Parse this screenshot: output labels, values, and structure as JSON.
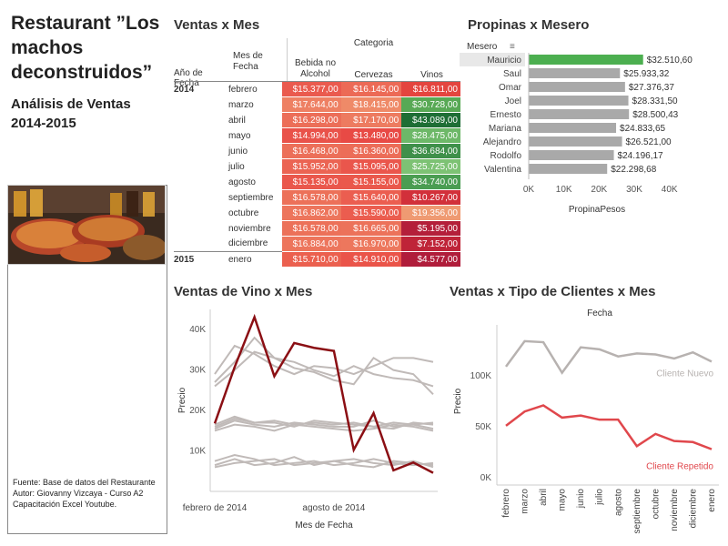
{
  "dashboard": {
    "title": "Restaurant ”Los machos deconstruidos”",
    "subtitle": "Análisis de Ventas 2014-2015",
    "source_lines": [
      "Fuente: Base de datos del Restaurante",
      "Autor: Giovanny Vizcaya - Curso A2",
      "Capacitación Excel Youtube."
    ]
  },
  "chart_data": [
    {
      "id": "ventas_x_mes",
      "type": "table",
      "title": "Ventas x Mes",
      "header_group": "Categoria",
      "row_headers": [
        "Año de Fecha",
        "Mes de Fecha"
      ],
      "columns": [
        "Bebida no Alcohol",
        "Cervezas",
        "Vinos"
      ],
      "rows": [
        {
          "year": "2014",
          "month": "febrero",
          "values": [
            "$15.377,00",
            "$16.145,00",
            "$16.811,00"
          ],
          "colors": [
            "#ea5a4e",
            "#ec6a56",
            "#e4453f"
          ]
        },
        {
          "year": "",
          "month": "marzo",
          "values": [
            "$17.644,00",
            "$18.415,00",
            "$30.728,00"
          ],
          "colors": [
            "#ee8063",
            "#ef8a68",
            "#58a955"
          ]
        },
        {
          "year": "",
          "month": "abril",
          "values": [
            "$16.298,00",
            "$17.170,00",
            "$43.089,00"
          ],
          "colors": [
            "#ec6e58",
            "#ed7b60",
            "#1e6e35"
          ]
        },
        {
          "year": "",
          "month": "mayo",
          "values": [
            "$14.994,00",
            "$13.480,00",
            "$28.475,00"
          ],
          "colors": [
            "#e9524a",
            "#e84a45",
            "#6db868"
          ]
        },
        {
          "year": "",
          "month": "junio",
          "values": [
            "$16.468,00",
            "$16.360,00",
            "$36.684,00"
          ],
          "colors": [
            "#ec6f59",
            "#ec6d58",
            "#3f904a"
          ]
        },
        {
          "year": "",
          "month": "julio",
          "values": [
            "$15.952,00",
            "$15.095,00",
            "$25.725,00"
          ],
          "colors": [
            "#eb6453",
            "#ea564c",
            "#7dc274"
          ]
        },
        {
          "year": "",
          "month": "agosto",
          "values": [
            "$15.135,00",
            "$15.155,00",
            "$34.740,00"
          ],
          "colors": [
            "#ea574c",
            "#ea584c",
            "#4a9d52"
          ]
        },
        {
          "year": "",
          "month": "septiembre",
          "values": [
            "$16.578,00",
            "$15.640,00",
            "$10.267,00"
          ],
          "colors": [
            "#ec7159",
            "#eb5e50",
            "#d2303a"
          ]
        },
        {
          "year": "",
          "month": "octubre",
          "values": [
            "$16.862,00",
            "$15.590,00",
            "$19.356,00"
          ],
          "colors": [
            "#ed755c",
            "#eb5d4f",
            "#ef9a72"
          ]
        },
        {
          "year": "",
          "month": "noviembre",
          "values": [
            "$16.578,00",
            "$16.665,00",
            "$5.195,00"
          ],
          "colors": [
            "#ec7159",
            "#ec725a",
            "#b41f3a"
          ]
        },
        {
          "year": "",
          "month": "diciembre",
          "values": [
            "$16.884,00",
            "$16.970,00",
            "$7.152,00"
          ],
          "colors": [
            "#ed755c",
            "#ed775d",
            "#bf2438"
          ]
        },
        {
          "year": "2015",
          "month": "enero",
          "values": [
            "$15.710,00",
            "$14.910,00",
            "$4.577,00"
          ],
          "colors": [
            "#eb604f",
            "#ea5449",
            "#b01d3b"
          ]
        }
      ]
    },
    {
      "id": "propinas_x_mesero",
      "type": "bar",
      "orientation": "horizontal",
      "title": "Propinas x Mesero",
      "row_header": "Mesero",
      "xlabel": "PropinaPesos",
      "xlim": [
        0,
        45000
      ],
      "xticks": [
        0,
        10000,
        20000,
        30000,
        40000
      ],
      "xtick_labels": [
        "0K",
        "10K",
        "20K",
        "30K",
        "40K"
      ],
      "categories": [
        "Mauricio",
        "Saul",
        "Omar",
        "Joel",
        "Ernesto",
        "Mariana",
        "Alejandro",
        "Rodolfo",
        "Valentina"
      ],
      "values": [
        32510.6,
        25933.32,
        27376.37,
        28331.5,
        28500.43,
        24833.65,
        26521.0,
        24196.17,
        22298.68
      ],
      "labels": [
        "$32.510,60",
        "$25.933,32",
        "$27.376,37",
        "$28.331,50",
        "$28.500,43",
        "$24.833,65",
        "$26.521,00",
        "$24.196,17",
        "$22.298,68"
      ],
      "highlight_color": "#4caf50",
      "bar_color": "#a9a9a9"
    },
    {
      "id": "ventas_vino_x_mes",
      "type": "line",
      "title": "Ventas de Vino x Mes",
      "xlabel": "Mes de Fecha",
      "ylabel": "Precio",
      "x": [
        "2014-02",
        "2014-03",
        "2014-04",
        "2014-05",
        "2014-06",
        "2014-07",
        "2014-08",
        "2014-09",
        "2014-10",
        "2014-11",
        "2014-12",
        "2015-01"
      ],
      "xtick_labels": [
        "febrero de 2014",
        "agosto de 2014"
      ],
      "ylim": [
        0,
        45000
      ],
      "yticks": [
        10000,
        20000,
        30000,
        40000
      ],
      "ytick_labels": [
        "10K",
        "20K",
        "30K",
        "40K"
      ],
      "highlight": {
        "color": "#8b0f14",
        "values": [
          16811,
          30728,
          43089,
          28475,
          36684,
          35500,
          34740,
          10267,
          19356,
          5195,
          7152,
          4577
        ]
      },
      "background_color": "#c0bab8",
      "background_series": [
        [
          29000,
          36000,
          34000,
          31000,
          29000,
          31000,
          30500,
          29000,
          31000,
          33000,
          33000,
          32000
        ],
        [
          27000,
          32000,
          38000,
          33000,
          32000,
          30000,
          28500,
          31000,
          29000,
          28000,
          27500,
          26000
        ],
        [
          26000,
          30000,
          34500,
          33000,
          30500,
          29500,
          27500,
          26500,
          33000,
          30000,
          29000,
          24000
        ],
        [
          16000,
          18000,
          17000,
          17500,
          16500,
          17000,
          16500,
          17000,
          16000,
          17000,
          16500,
          17000
        ],
        [
          15500,
          17500,
          16500,
          16000,
          17000,
          16500,
          16000,
          16000,
          17500,
          16000,
          16500,
          15500
        ],
        [
          15000,
          16500,
          16000,
          15000,
          16500,
          16000,
          15500,
          15000,
          15500,
          16500,
          16000,
          15000
        ],
        [
          16500,
          18500,
          17000,
          17000,
          16000,
          17500,
          17000,
          16500,
          16000,
          15500,
          17000,
          16500
        ],
        [
          6500,
          8000,
          6500,
          7000,
          8500,
          6500,
          7500,
          8000,
          7000,
          6500,
          7500,
          6000
        ],
        [
          7500,
          9000,
          8000,
          6500,
          7000,
          7500,
          6500,
          7000,
          8000,
          7000,
          6500,
          7000
        ],
        [
          6000,
          7000,
          7500,
          8000,
          6500,
          7000,
          7500,
          6500,
          6000,
          7500,
          7000,
          6500
        ]
      ]
    },
    {
      "id": "ventas_tipo_clientes_x_mes",
      "type": "line",
      "title": "Ventas x Tipo de Clientes x Mes",
      "header": "Fecha",
      "ylabel": "Precio",
      "categories": [
        "febrero",
        "marzo",
        "abril",
        "mayo",
        "junio",
        "julio",
        "agosto",
        "septiembre",
        "octubre",
        "noviembre",
        "diciembre",
        "enero"
      ],
      "ylim": [
        0,
        150000
      ],
      "yticks": [
        0,
        50000,
        100000
      ],
      "ytick_labels": [
        "0K",
        "50K",
        "100K"
      ],
      "series": [
        {
          "name": "Cliente Nuevo",
          "color": "#b7b2b0",
          "values": [
            109000,
            134000,
            133000,
            103000,
            128000,
            126000,
            119000,
            122000,
            121000,
            117000,
            123000,
            114000
          ]
        },
        {
          "name": "Cliente Repetido",
          "color": "#e0474c",
          "values": [
            51000,
            65000,
            71000,
            59000,
            61000,
            57000,
            57000,
            31000,
            43000,
            36000,
            35000,
            28000
          ]
        }
      ]
    }
  ]
}
